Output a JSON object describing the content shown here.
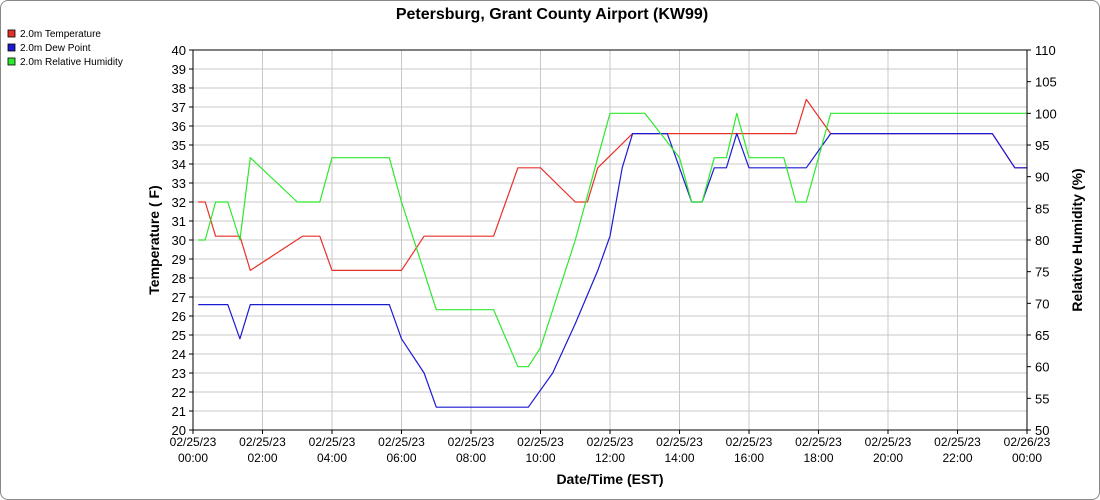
{
  "chart_data": {
    "type": "line",
    "title": "Petersburg, Grant County Airport (KW99)",
    "xlabel": "Date/Time (EST)",
    "ylabel": "Temperature ( F)",
    "y2label": "Relative Humidity (%)",
    "ylim": [
      20,
      40
    ],
    "y2lim": [
      50,
      110
    ],
    "xlim": [
      "02/25/23 00:00",
      "02/26/23 00:00"
    ],
    "grid": true,
    "legend_position": "top-left",
    "x_ticks": [
      {
        "hour": 0,
        "date": "02/25/23",
        "time": "00:00"
      },
      {
        "hour": 2,
        "date": "02/25/23",
        "time": "02:00"
      },
      {
        "hour": 4,
        "date": "02/25/23",
        "time": "04:00"
      },
      {
        "hour": 6,
        "date": "02/25/23",
        "time": "06:00"
      },
      {
        "hour": 8,
        "date": "02/25/23",
        "time": "08:00"
      },
      {
        "hour": 10,
        "date": "02/25/23",
        "time": "10:00"
      },
      {
        "hour": 12,
        "date": "02/25/23",
        "time": "12:00"
      },
      {
        "hour": 14,
        "date": "02/25/23",
        "time": "14:00"
      },
      {
        "hour": 16,
        "date": "02/25/23",
        "time": "16:00"
      },
      {
        "hour": 18,
        "date": "02/25/23",
        "time": "18:00"
      },
      {
        "hour": 20,
        "date": "02/25/23",
        "time": "20:00"
      },
      {
        "hour": 22,
        "date": "02/25/23",
        "time": "22:00"
      },
      {
        "hour": 24,
        "date": "02/26/23",
        "time": "00:00"
      }
    ],
    "y_ticks": [
      20,
      21,
      22,
      23,
      24,
      25,
      26,
      27,
      28,
      29,
      30,
      31,
      32,
      33,
      34,
      35,
      36,
      37,
      38,
      39,
      40
    ],
    "y2_ticks": [
      50,
      55,
      60,
      65,
      70,
      75,
      80,
      85,
      90,
      95,
      100,
      105,
      110
    ],
    "series": [
      {
        "name": "2.0m Temperature",
        "axis": "left",
        "color": "#e8302a",
        "points": [
          [
            0.15,
            32.0
          ],
          [
            0.35,
            32.0
          ],
          [
            0.65,
            30.2
          ],
          [
            1.15,
            30.2
          ],
          [
            1.35,
            30.2
          ],
          [
            1.65,
            28.4
          ],
          [
            3.15,
            30.2
          ],
          [
            3.65,
            30.2
          ],
          [
            4.0,
            28.4
          ],
          [
            6.0,
            28.4
          ],
          [
            6.65,
            30.2
          ],
          [
            8.65,
            30.2
          ],
          [
            9.35,
            33.8
          ],
          [
            10.0,
            33.8
          ],
          [
            11.0,
            32.0
          ],
          [
            11.35,
            32.0
          ],
          [
            11.65,
            33.8
          ],
          [
            12.65,
            35.6
          ],
          [
            13.65,
            35.6
          ],
          [
            14.0,
            35.6
          ],
          [
            15.0,
            35.6
          ],
          [
            16.65,
            35.6
          ],
          [
            17.35,
            35.6
          ],
          [
            17.65,
            37.4
          ],
          [
            18.35,
            35.6
          ],
          [
            23.0,
            35.6
          ],
          [
            23.65,
            33.8
          ],
          [
            24.0,
            33.8
          ]
        ]
      },
      {
        "name": "2.0m Dew Point",
        "axis": "left",
        "color": "#1a1ad4",
        "points": [
          [
            0.15,
            26.6
          ],
          [
            0.35,
            26.6
          ],
          [
            1.0,
            26.6
          ],
          [
            1.35,
            24.8
          ],
          [
            1.65,
            26.6
          ],
          [
            2.0,
            26.6
          ],
          [
            4.0,
            26.6
          ],
          [
            5.65,
            26.6
          ],
          [
            6.0,
            24.8
          ],
          [
            6.65,
            23.0
          ],
          [
            7.0,
            21.2
          ],
          [
            9.65,
            21.2
          ],
          [
            10.35,
            23.0
          ],
          [
            11.0,
            25.6
          ],
          [
            11.65,
            28.4
          ],
          [
            12.0,
            30.2
          ],
          [
            12.35,
            33.8
          ],
          [
            12.65,
            35.6
          ],
          [
            13.65,
            35.6
          ],
          [
            14.0,
            33.8
          ],
          [
            14.35,
            32.0
          ],
          [
            14.65,
            32.0
          ],
          [
            15.0,
            33.8
          ],
          [
            15.35,
            33.8
          ],
          [
            15.65,
            35.6
          ],
          [
            16.0,
            33.8
          ],
          [
            17.0,
            33.8
          ],
          [
            17.65,
            33.8
          ],
          [
            18.35,
            35.6
          ],
          [
            23.0,
            35.6
          ],
          [
            23.65,
            33.8
          ],
          [
            24.0,
            33.8
          ]
        ]
      },
      {
        "name": "2.0m Relative Humidity",
        "axis": "right",
        "color": "#2ee82e",
        "points": [
          [
            0.15,
            80
          ],
          [
            0.35,
            80
          ],
          [
            0.65,
            86
          ],
          [
            1.0,
            86
          ],
          [
            1.35,
            80
          ],
          [
            1.65,
            93
          ],
          [
            3.0,
            86
          ],
          [
            3.65,
            86
          ],
          [
            4.0,
            93
          ],
          [
            5.65,
            93
          ],
          [
            6.0,
            86
          ],
          [
            6.65,
            75
          ],
          [
            7.0,
            69
          ],
          [
            8.65,
            69
          ],
          [
            9.35,
            60
          ],
          [
            9.65,
            60
          ],
          [
            10.0,
            63
          ],
          [
            11.0,
            80
          ],
          [
            11.65,
            93
          ],
          [
            12.0,
            100
          ],
          [
            13.0,
            100
          ],
          [
            14.0,
            93
          ],
          [
            14.35,
            86
          ],
          [
            14.65,
            86
          ],
          [
            15.0,
            93
          ],
          [
            15.35,
            93
          ],
          [
            15.65,
            100
          ],
          [
            16.0,
            93
          ],
          [
            17.0,
            93
          ],
          [
            17.35,
            86
          ],
          [
            17.65,
            86
          ],
          [
            18.0,
            93
          ],
          [
            18.35,
            100
          ],
          [
            24.0,
            100
          ]
        ]
      }
    ]
  }
}
